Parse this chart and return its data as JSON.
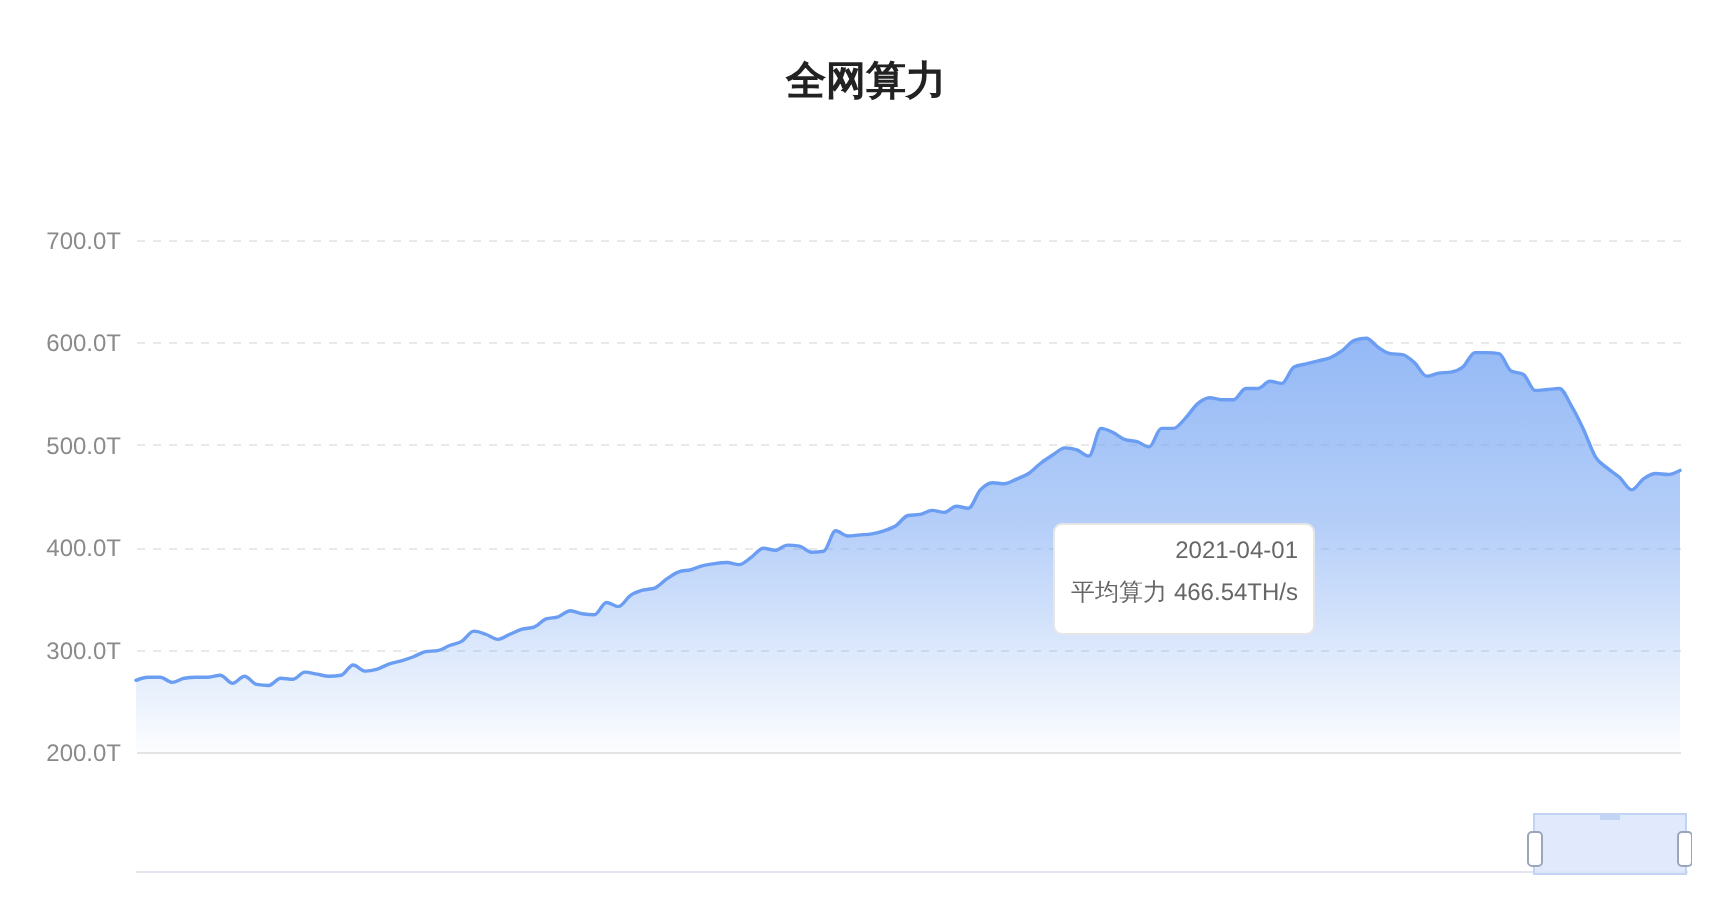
{
  "chart_data": {
    "type": "area",
    "title": "全网算力",
    "categories": [
      null,
      null,
      null,
      null,
      null,
      null,
      null,
      null,
      null,
      null,
      null,
      null,
      null,
      null,
      null,
      null,
      null,
      null,
      null,
      null,
      null,
      null,
      null,
      null,
      null,
      null,
      null,
      null,
      null,
      null,
      null,
      null,
      null,
      null,
      null,
      null,
      null,
      null,
      null,
      null,
      null,
      null,
      null,
      null,
      null,
      null,
      null,
      null,
      null,
      null,
      null,
      null,
      null,
      null,
      null,
      null,
      null,
      null,
      null,
      null,
      null,
      null,
      null,
      null,
      null,
      null,
      null,
      null,
      null,
      null,
      null,
      null,
      null,
      null,
      null,
      null,
      null,
      null,
      null,
      null,
      null,
      null,
      null,
      null,
      null,
      null,
      null,
      null,
      null,
      null,
      null,
      null,
      null,
      null,
      null,
      null,
      null,
      null,
      null,
      null,
      null,
      null,
      null,
      null,
      null,
      null,
      null,
      null,
      null,
      null,
      null,
      null,
      null,
      null,
      null,
      null,
      null,
      null,
      null,
      null,
      null,
      null,
      null,
      null,
      null,
      null,
      null,
      null,
      null
    ],
    "values": [
      270,
      273,
      273,
      268,
      272,
      273,
      273,
      275,
      267,
      274,
      266,
      265,
      272,
      271,
      278,
      276,
      274,
      275,
      285,
      279,
      281,
      286,
      289,
      293,
      298,
      299,
      304,
      308,
      318,
      315,
      310,
      315,
      320,
      322,
      330,
      332,
      338,
      335,
      334,
      346,
      342,
      353,
      358,
      360,
      369,
      376,
      378,
      382,
      384,
      385,
      383,
      390,
      399,
      397,
      402,
      401,
      395,
      396,
      416,
      411,
      412,
      413,
      416,
      421,
      431,
      432,
      436,
      434,
      440,
      438,
      456,
      463,
      462,
      466.54,
      472,
      482,
      490,
      497,
      495,
      489,
      516,
      512,
      505,
      503,
      498,
      516,
      516,
      526,
      540,
      546,
      544,
      544,
      555,
      555,
      562,
      560,
      576,
      579,
      582,
      585,
      592,
      602,
      604,
      595,
      589,
      588,
      580,
      567,
      570,
      571,
      576,
      590,
      590,
      589,
      572,
      569,
      553,
      554,
      555,
      538,
      515,
      488,
      477,
      468,
      456,
      467,
      472,
      471,
      475
    ],
    "color": "#6b9ef2",
    "ylim": [
      200,
      700
    ],
    "yticks": [
      {
        "value": 200,
        "label": "200.0T"
      },
      {
        "value": 300,
        "label": "300.0T"
      },
      {
        "value": 400,
        "label": "400.0T"
      },
      {
        "value": 500,
        "label": "500.0T"
      },
      {
        "value": 600,
        "label": "600.0T"
      },
      {
        "value": 700,
        "label": "700.0T"
      }
    ],
    "grid": "y",
    "annotations": [
      "2021-04-01\n平均算力 466.54TH/s"
    ]
  }
}
